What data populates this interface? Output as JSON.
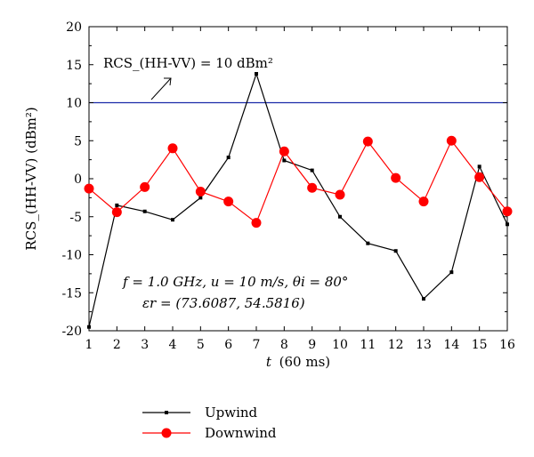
{
  "chart_data": {
    "type": "line",
    "x": [
      1,
      2,
      3,
      4,
      5,
      6,
      7,
      8,
      9,
      10,
      11,
      12,
      13,
      14,
      15,
      16
    ],
    "xlim": [
      1,
      16
    ],
    "ylim": [
      -20,
      20
    ],
    "xticks": [
      "1",
      "2",
      "3",
      "4",
      "5",
      "6",
      "7",
      "8",
      "9",
      "10",
      "11",
      "12",
      "13",
      "14",
      "15",
      "16"
    ],
    "yticks": [
      "-20",
      "-15",
      "-10",
      "-5",
      "0",
      "5",
      "10",
      "15",
      "20"
    ],
    "xlabel_var": "t",
    "xlabel_unit": "(60 ms)",
    "ylabel": "RCS_(HH-VV) (dBm²)",
    "grid": false,
    "legend_position": "bottom-left, outside plot",
    "series": [
      {
        "name": "Upwind",
        "color": "#000000",
        "marker": "square",
        "values": [
          -19.5,
          -3.5,
          -4.3,
          -5.4,
          -2.5,
          2.8,
          13.8,
          2.4,
          1.1,
          -5.0,
          -8.5,
          -9.5,
          -15.8,
          -12.3,
          1.6,
          -6.0
        ]
      },
      {
        "name": "Downwind",
        "color": "#ff0000",
        "marker": "circle",
        "values": [
          -1.3,
          -4.4,
          -1.1,
          4.0,
          -1.7,
          -3.0,
          -5.8,
          3.6,
          -1.2,
          -2.1,
          4.9,
          0.1,
          -3.0,
          5.0,
          0.2,
          -4.3
        ]
      }
    ],
    "reference_line": {
      "y": 10,
      "color": "#1a2aa8",
      "label": "RCS_(HH-VV) = 10 dBm²"
    },
    "annotations": {
      "line1": "f = 1.0 GHz, u = 10 m/s, θi = 80°",
      "line2": "εr = (73.6087, 54.5816)"
    }
  }
}
